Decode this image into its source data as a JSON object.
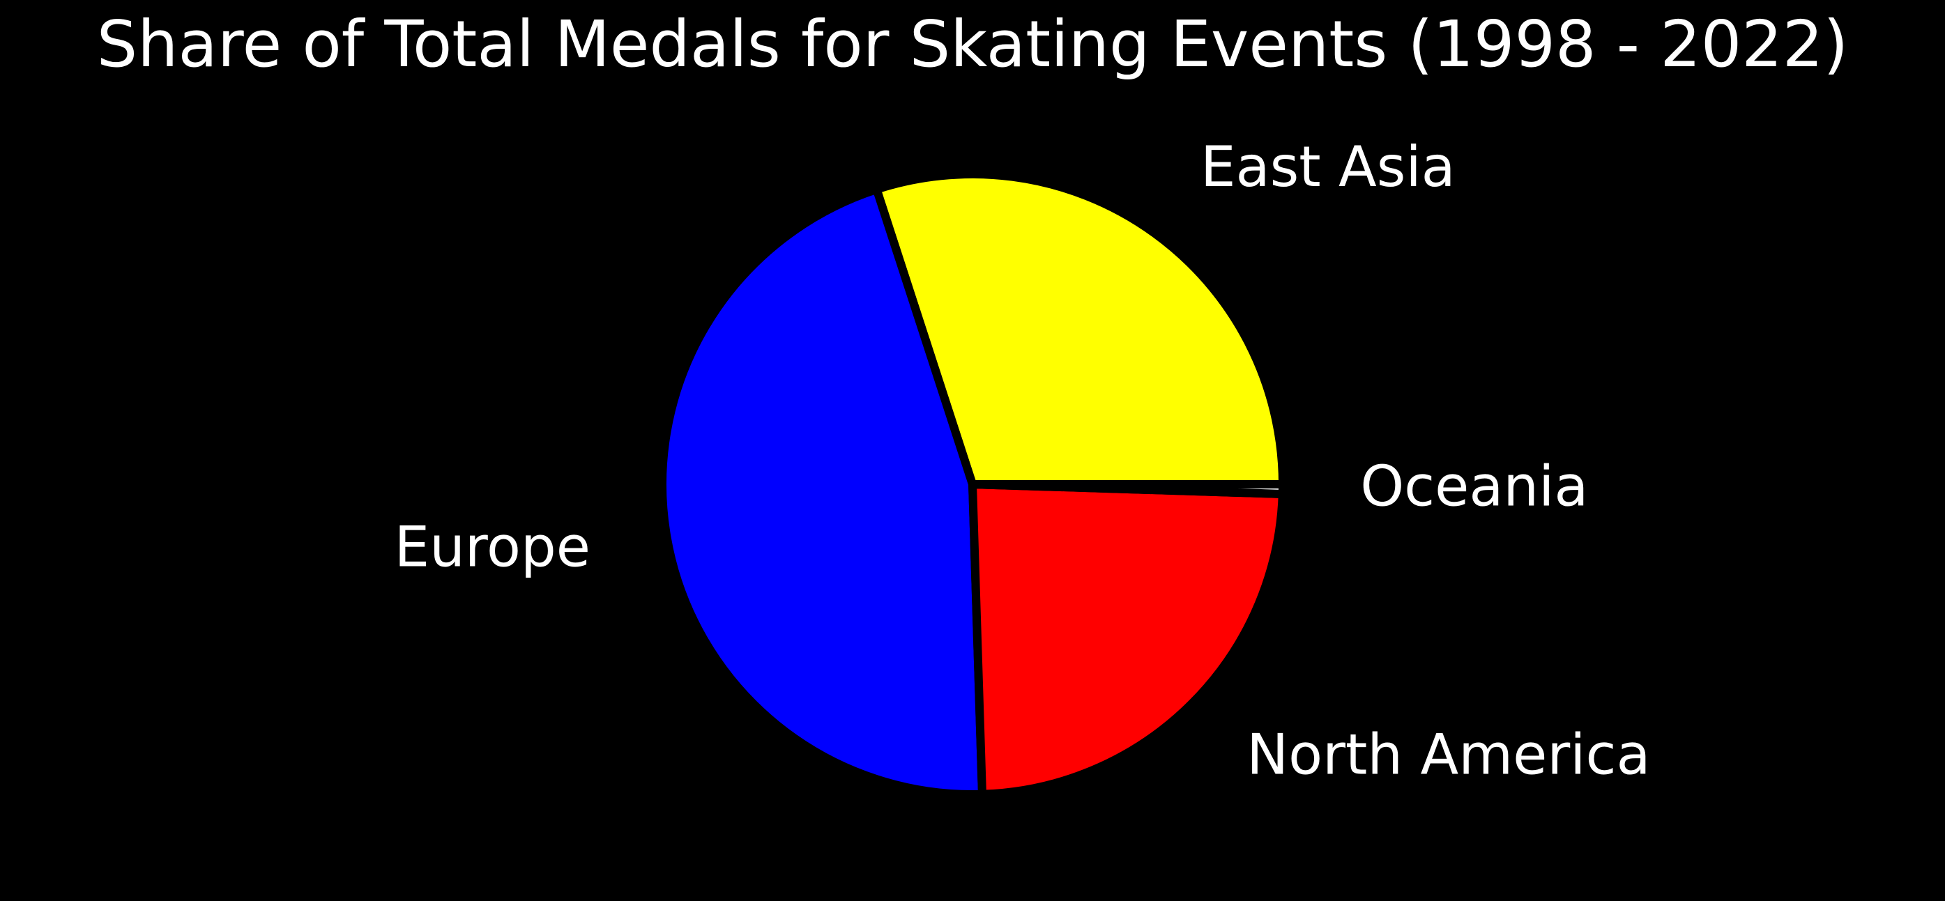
{
  "chart_data": {
    "type": "pie",
    "title": "Share of Total Medals for Skating Events (1998 - 2022)",
    "start_angle_deg": 0,
    "direction": "counterclockwise",
    "slices": [
      {
        "label": "East Asia",
        "value": 30.0,
        "color": "#FFFF00"
      },
      {
        "label": "Europe",
        "value": 45.5,
        "color": "#0000FF"
      },
      {
        "label": "North America",
        "value": 24.0,
        "color": "#FF0000"
      },
      {
        "label": "Oceania",
        "value": 0.5,
        "color": "#FFFFFF"
      }
    ],
    "edge_color": "#000000",
    "background": "#000000",
    "text_color": "#FFFFFF"
  }
}
